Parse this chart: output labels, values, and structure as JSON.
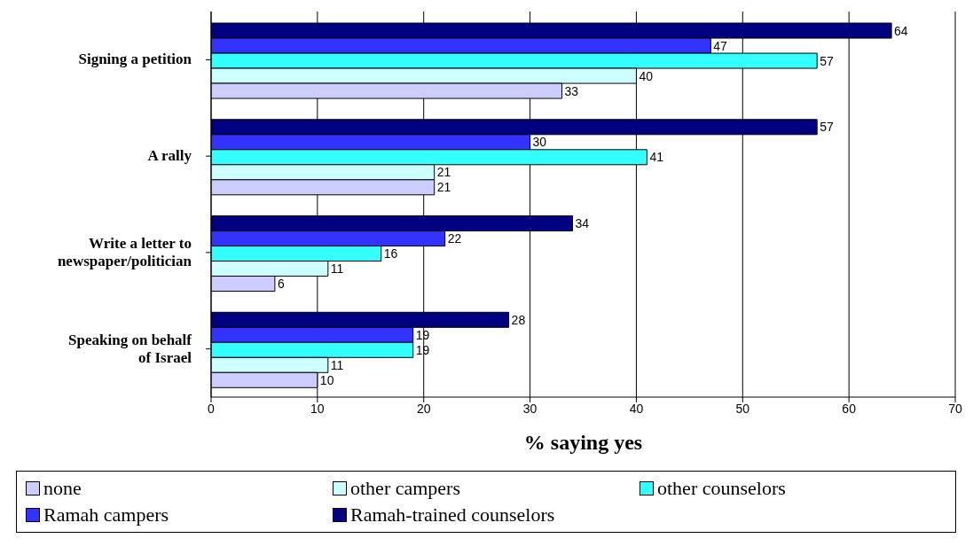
{
  "chart_data": {
    "type": "bar",
    "orientation": "horizontal",
    "categories": [
      "Signing a petition",
      "A rally",
      "Write a letter to\nnewspaper/politician",
      "Speaking on behalf\nof Israel"
    ],
    "series": [
      {
        "name": "none",
        "color": "#ccccff",
        "values": [
          33,
          21,
          6,
          10
        ]
      },
      {
        "name": "other campers",
        "color": "#ccffff",
        "values": [
          40,
          21,
          11,
          11
        ]
      },
      {
        "name": "other counselors",
        "color": "#33ffff",
        "values": [
          57,
          41,
          16,
          19
        ]
      },
      {
        "name": "Ramah campers",
        "color": "#3333ff",
        "values": [
          47,
          30,
          22,
          19
        ]
      },
      {
        "name": "Ramah-trained counselors",
        "color": "#000080",
        "values": [
          64,
          57,
          34,
          28
        ]
      }
    ],
    "xlabel": "% saying yes",
    "xlim": [
      0,
      70
    ],
    "xticks": [
      0,
      10,
      20,
      30,
      40,
      50,
      60,
      70
    ],
    "grid": "x",
    "data_labels": true,
    "legend": "bottom"
  }
}
